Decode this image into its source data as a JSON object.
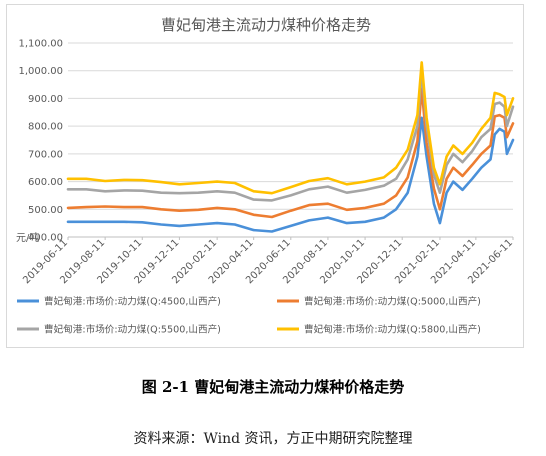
{
  "chart_data": {
    "type": "line",
    "title": "曹妃甸港主流动力煤种价格走势",
    "ylabel": "元/吨",
    "xlabel": "",
    "ylim": [
      400,
      1100
    ],
    "yticks": [
      "400.00",
      "500.00",
      "600.00",
      "700.00",
      "800.00",
      "900.00",
      "1,000.00",
      "1,100.00"
    ],
    "xticks": [
      "2019-06-11",
      "2019-08-11",
      "2019-10-11",
      "2019-12-11",
      "2020-02-11",
      "2020-04-11",
      "2020-06-11",
      "2020-08-11",
      "2020-10-11",
      "2020-12-11",
      "2021-02-11",
      "2021-04-11",
      "2021-06-11"
    ],
    "grid": true,
    "legend_position": "bottom",
    "x": [
      "2019-06-11",
      "2019-07-11",
      "2019-08-11",
      "2019-09-11",
      "2019-10-11",
      "2019-11-11",
      "2019-12-11",
      "2020-01-11",
      "2020-02-11",
      "2020-03-11",
      "2020-04-11",
      "2020-05-11",
      "2020-06-11",
      "2020-07-11",
      "2020-08-11",
      "2020-09-11",
      "2020-10-11",
      "2020-11-11",
      "2020-12-01",
      "2020-12-20",
      "2021-01-05",
      "2021-01-12",
      "2021-01-20",
      "2021-02-01",
      "2021-02-11",
      "2021-02-22",
      "2021-03-05",
      "2021-03-20",
      "2021-04-05",
      "2021-04-20",
      "2021-05-05",
      "2021-05-12",
      "2021-05-20",
      "2021-05-28",
      "2021-06-01",
      "2021-06-11"
    ],
    "series": [
      {
        "name": "曹妃甸港:市场价:动力煤(Q:4500,山西产)",
        "color": "#4a90d9",
        "values": [
          455,
          455,
          455,
          455,
          453,
          445,
          440,
          445,
          450,
          445,
          425,
          420,
          440,
          460,
          470,
          450,
          455,
          470,
          500,
          560,
          690,
          830,
          690,
          520,
          450,
          560,
          600,
          570,
          610,
          650,
          680,
          770,
          790,
          780,
          700,
          750
        ]
      },
      {
        "name": "曹妃甸港:市场价:动力煤(Q:5000,山西产)",
        "color": "#ed7d31",
        "values": [
          505,
          508,
          510,
          508,
          508,
          500,
          495,
          498,
          505,
          500,
          480,
          472,
          495,
          515,
          520,
          498,
          505,
          520,
          550,
          615,
          745,
          935,
          740,
          575,
          500,
          610,
          650,
          620,
          660,
          700,
          730,
          835,
          840,
          830,
          760,
          810
        ]
      },
      {
        "name": "曹妃甸港:市场价:动力煤(Q:5500,山西产)",
        "color": "#a5a5a5",
        "values": [
          572,
          572,
          565,
          568,
          567,
          560,
          558,
          560,
          565,
          560,
          535,
          532,
          550,
          572,
          582,
          560,
          570,
          585,
          610,
          680,
          800,
          1000,
          800,
          625,
          560,
          660,
          700,
          670,
          710,
          760,
          790,
          880,
          885,
          870,
          800,
          870
        ]
      },
      {
        "name": "曹妃甸港:市场价:动力煤(Q:5800,山西产)",
        "color": "#ffc000",
        "values": [
          610,
          610,
          602,
          606,
          605,
          598,
          590,
          595,
          600,
          595,
          565,
          558,
          580,
          602,
          612,
          590,
          600,
          615,
          650,
          715,
          840,
          1030,
          830,
          650,
          590,
          690,
          730,
          700,
          740,
          790,
          830,
          920,
          915,
          905,
          840,
          900
        ]
      }
    ]
  },
  "caption": {
    "figure": "图 2-1  曹妃甸港主流动力煤种价格走势",
    "source": "资料来源：Wind 资讯，方正中期研究院整理"
  }
}
